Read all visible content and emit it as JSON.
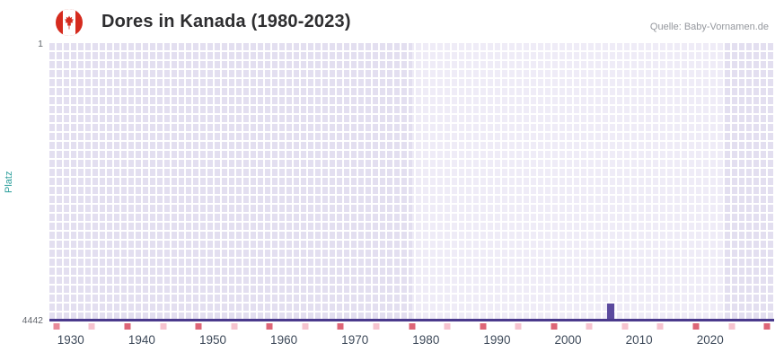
{
  "header": {
    "title": "Dores in Kanada (1980-2023)",
    "source": "Quelle: Baby-Vornamen.de",
    "flag": "canada-flag-icon"
  },
  "chart_data": {
    "type": "bar",
    "title": "Dores in Kanada (1980-2023)",
    "ylabel": "Platz",
    "y_ticks": [
      "1",
      "4442"
    ],
    "x_ticks": [
      1930,
      1940,
      1950,
      1960,
      1970,
      1980,
      1990,
      2000,
      2010,
      2020
    ],
    "xlim": [
      1927,
      2029
    ],
    "ylim_top": 1,
    "ylim_bottom": 4442,
    "y_inverted": true,
    "grid": true,
    "legend": "none",
    "bars": [
      {
        "year": 2006,
        "rank": 4150
      }
    ],
    "baseline": {
      "rank": 4442,
      "from": 1927,
      "to": 2029
    },
    "band_regions": [
      {
        "from": 1927,
        "to": 1978,
        "shade": "dark"
      },
      {
        "from": 1978,
        "to": 2022,
        "shade": "light"
      },
      {
        "from": 2022,
        "to": 2029,
        "shade": "dark"
      }
    ],
    "bottom_markers": [
      {
        "year": 1928,
        "intensity": "medium"
      },
      {
        "year": 1933,
        "intensity": "light"
      },
      {
        "year": 1938,
        "intensity": "dark"
      },
      {
        "year": 1943,
        "intensity": "light"
      },
      {
        "year": 1948,
        "intensity": "dark"
      },
      {
        "year": 1953,
        "intensity": "light"
      },
      {
        "year": 1958,
        "intensity": "dark"
      },
      {
        "year": 1963,
        "intensity": "light"
      },
      {
        "year": 1968,
        "intensity": "dark"
      },
      {
        "year": 1973,
        "intensity": "light"
      },
      {
        "year": 1978,
        "intensity": "dark"
      },
      {
        "year": 1983,
        "intensity": "light"
      },
      {
        "year": 1988,
        "intensity": "dark"
      },
      {
        "year": 1993,
        "intensity": "light"
      },
      {
        "year": 1998,
        "intensity": "dark"
      },
      {
        "year": 2003,
        "intensity": "light"
      },
      {
        "year": 2008,
        "intensity": "light"
      },
      {
        "year": 2013,
        "intensity": "light"
      },
      {
        "year": 2018,
        "intensity": "dark"
      },
      {
        "year": 2023,
        "intensity": "light"
      },
      {
        "year": 2028,
        "intensity": "dark"
      }
    ],
    "colors": {
      "bar": "#5b4a9e",
      "baseline": "#4a3a8c",
      "plot_bg_light": "#efecf7",
      "plot_bg_dark": "#e3dff0",
      "grid": "#ffffff",
      "marker_dark": "#dd6577",
      "marker_medium": "#e88a99",
      "marker_light": "#f6c3cf",
      "ylabel_color": "#2b9e9b",
      "xtick_color": "#3e4a5a",
      "ytick_color": "#63676e"
    }
  }
}
